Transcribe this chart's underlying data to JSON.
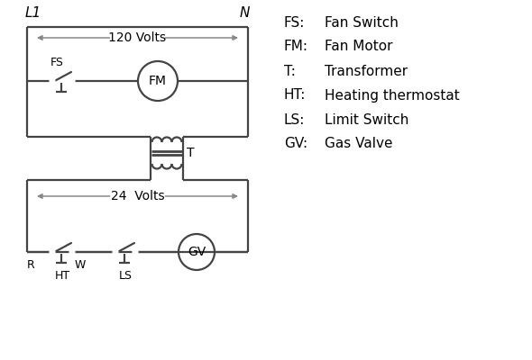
{
  "background_color": "#ffffff",
  "line_color": "#444444",
  "text_color": "#000000",
  "legend_items": [
    [
      "FS:",
      "Fan Switch"
    ],
    [
      "FM:",
      "Fan Motor"
    ],
    [
      "T:",
      "Transformer"
    ],
    [
      "HT:",
      "Heating thermostat"
    ],
    [
      "LS:",
      "Limit Switch"
    ],
    [
      "GV:",
      "Gas Valve"
    ]
  ],
  "label_L1": "L1",
  "label_N": "N",
  "label_120V": "120 Volts",
  "label_24V": "24  Volts",
  "label_T": "T",
  "label_FS": "FS",
  "label_FM": "FM",
  "label_GV": "GV",
  "label_R": "R",
  "label_W": "W",
  "label_HT": "HT",
  "label_LS": "LS",
  "arrow_color": "#888888"
}
